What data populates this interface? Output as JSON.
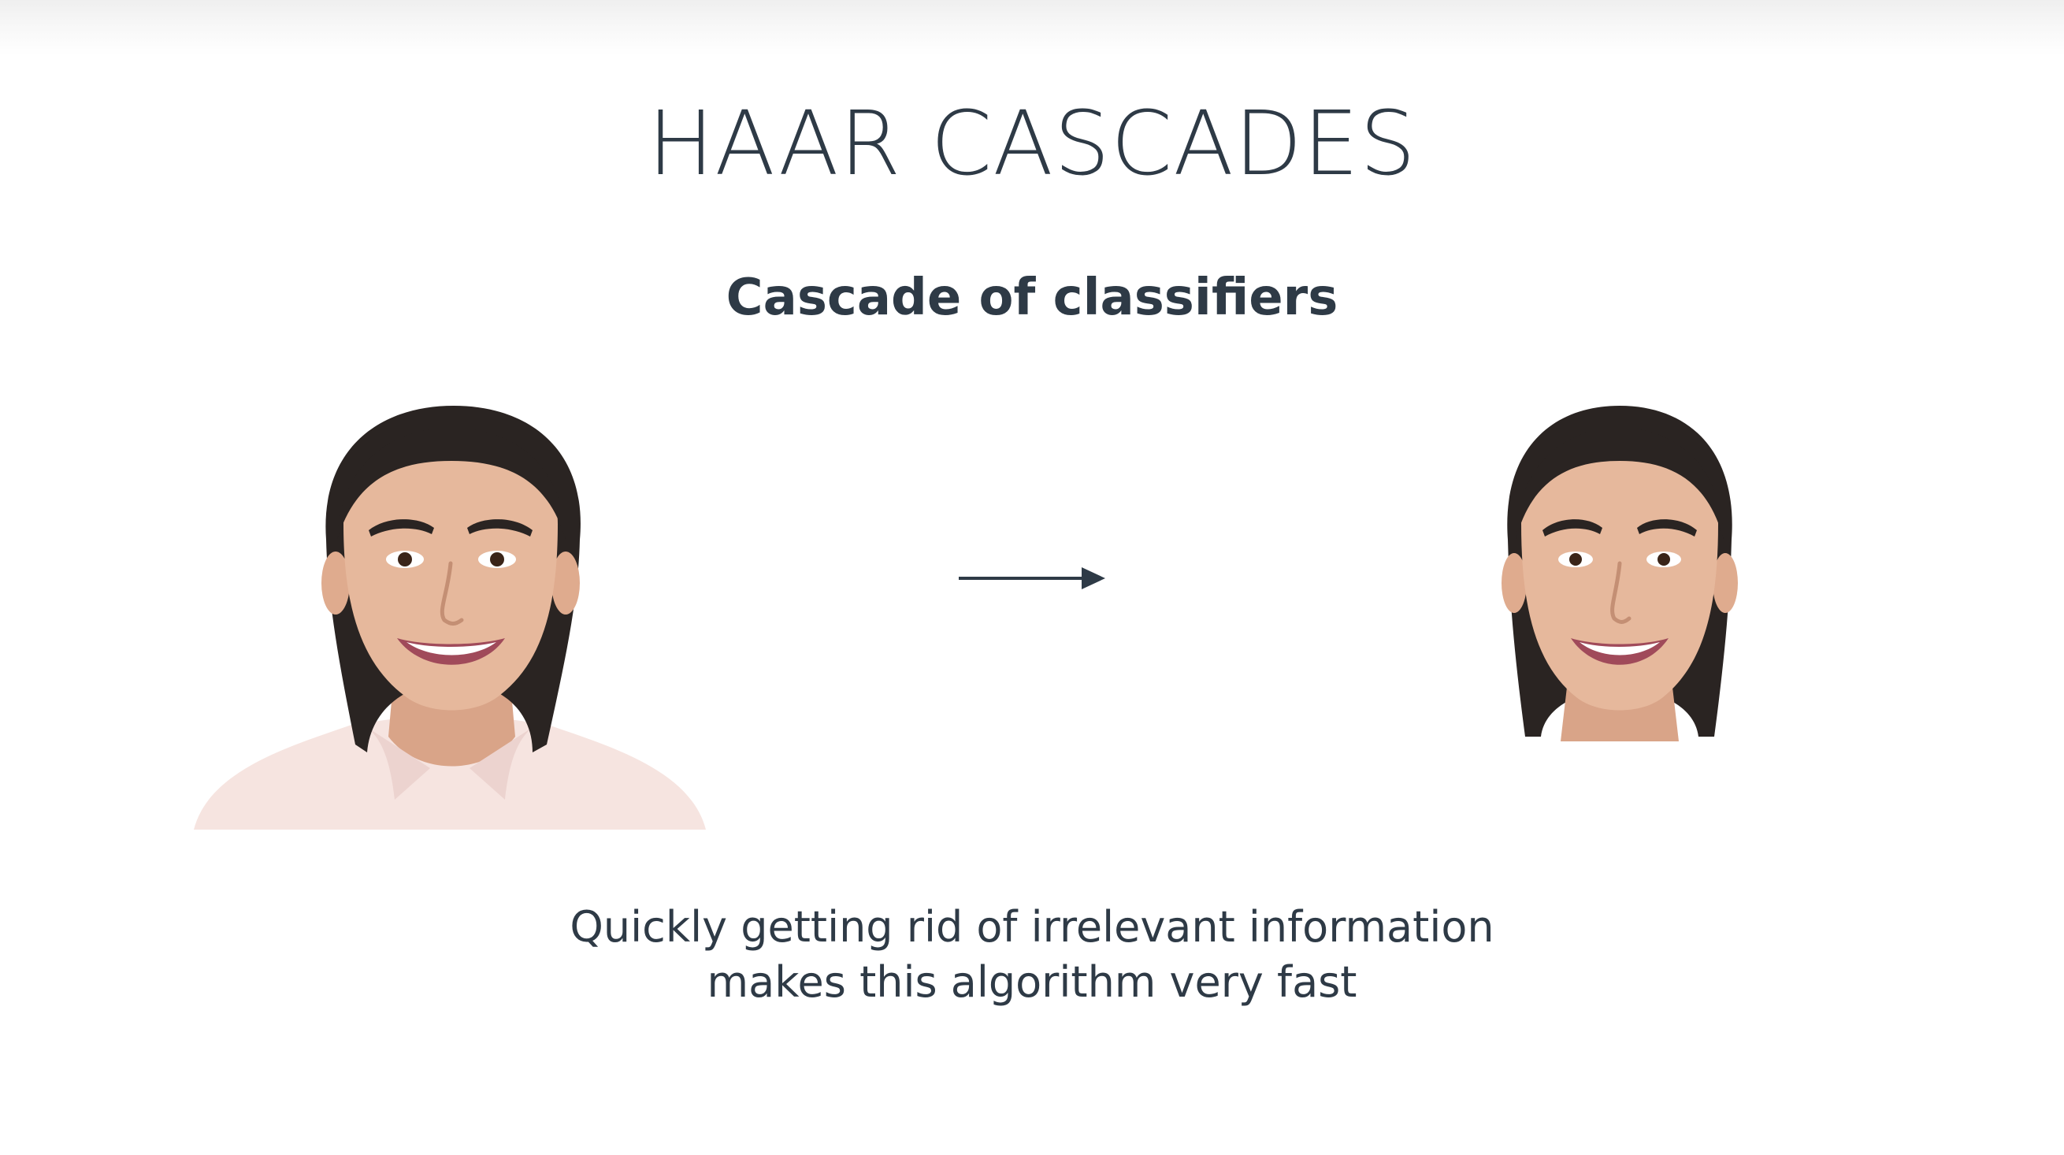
{
  "slide": {
    "title": "HAAR CASCADES",
    "subtitle": "Cascade of classifiers",
    "caption_lines": [
      "Quickly getting rid of irrelevant information",
      "makes this algorithm very fast"
    ]
  },
  "colors": {
    "text": "#2e3a46",
    "background": "#ffffff",
    "hair": "#2a2422",
    "skin": "#e6b89c",
    "lips": "#a04a5a",
    "shirt": "#f6e4e0"
  },
  "icons": [
    "portrait-photo-icon",
    "face-crop-photo-icon",
    "right-arrow-icon"
  ]
}
